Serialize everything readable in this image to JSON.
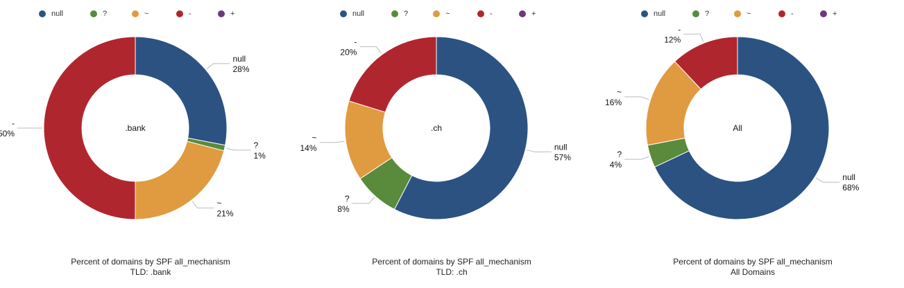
{
  "legend": [
    {
      "label": "null",
      "color": "#2c5282"
    },
    {
      "label": "?",
      "color": "#5a8a3c"
    },
    {
      "label": "~",
      "color": "#e09a40"
    },
    {
      "label": "-",
      "color": "#b0262f"
    },
    {
      "label": "+",
      "color": "#6b3a7a"
    }
  ],
  "chart_data": [
    {
      "type": "pie",
      "donut": true,
      "center_label": ".bank",
      "caption": [
        "Percent of domains by SPF all_mechanism",
        "TLD: .bank"
      ],
      "slices": [
        {
          "name": "null",
          "value": 28,
          "label": "28%",
          "color": "#2c5282"
        },
        {
          "name": "?",
          "value": 1,
          "label": "1%",
          "color": "#5a8a3c"
        },
        {
          "name": "~",
          "value": 21,
          "label": "21%",
          "color": "#e09a40"
        },
        {
          "name": "-",
          "value": 50,
          "label": "50%",
          "color": "#b0262f"
        }
      ]
    },
    {
      "type": "pie",
      "donut": true,
      "center_label": ".ch",
      "caption": [
        "Percent of domains by SPF all_mechanism",
        "TLD: .ch"
      ],
      "slices": [
        {
          "name": "null",
          "value": 57,
          "label": "57%",
          "color": "#2c5282"
        },
        {
          "name": "?",
          "value": 8,
          "label": "8%",
          "color": "#5a8a3c"
        },
        {
          "name": "~",
          "value": 14,
          "label": "14%",
          "color": "#e09a40"
        },
        {
          "name": "-",
          "value": 20,
          "label": "20%",
          "color": "#b0262f"
        }
      ]
    },
    {
      "type": "pie",
      "donut": true,
      "center_label": "All",
      "caption": [
        "Percent of domains by SPF all_mechanism",
        "All Domains"
      ],
      "slices": [
        {
          "name": "null",
          "value": 68,
          "label": "68%",
          "color": "#2c5282"
        },
        {
          "name": "?",
          "value": 4,
          "label": "4%",
          "color": "#5a8a3c"
        },
        {
          "name": "~",
          "value": 16,
          "label": "16%",
          "color": "#e09a40"
        },
        {
          "name": "-",
          "value": 12,
          "label": "12%",
          "color": "#b0262f"
        }
      ]
    }
  ]
}
